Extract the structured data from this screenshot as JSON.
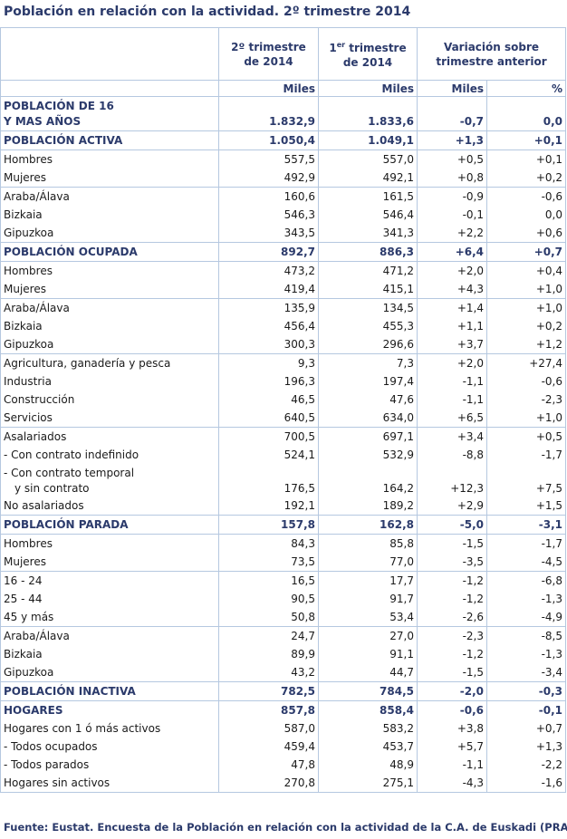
{
  "title": "Población en relación con la actividad. 2º trimestre 2014",
  "headers": {
    "col1_line1": "2º trimestre",
    "col1_line2": "de 2014",
    "col2_pre": "1",
    "col2_sup": "er",
    "col2_post": " trimestre",
    "col2_line2": "de 2014",
    "col3_line1": "Variación sobre",
    "col3_line2": "trimestre anterior",
    "unit_miles_1": "Miles",
    "unit_miles_2": "Miles",
    "unit_miles_3": "Miles",
    "unit_pct": "%"
  },
  "rows": [
    {
      "label": "POBLACIÓN DE 16",
      "label2": "Y MAS AÑOS",
      "v1": "1.832,9",
      "v2": "1.833,6",
      "v3": "-0,7",
      "v4": "0,0"
    },
    {
      "label": "POBLACIÓN ACTIVA",
      "v1": "1.050,4",
      "v2": "1.049,1",
      "v3": "+1,3",
      "v4": "+0,1"
    },
    {
      "label": "Hombres",
      "v1": "557,5",
      "v2": "557,0",
      "v3": "+0,5",
      "v4": "+0,1"
    },
    {
      "label": "Mujeres",
      "v1": "492,9",
      "v2": "492,1",
      "v3": "+0,8",
      "v4": "+0,2"
    },
    {
      "label": "Araba/Álava",
      "v1": "160,6",
      "v2": "161,5",
      "v3": "-0,9",
      "v4": "-0,6"
    },
    {
      "label": "Bizkaia",
      "v1": "546,3",
      "v2": "546,4",
      "v3": "-0,1",
      "v4": "0,0"
    },
    {
      "label": "Gipuzkoa",
      "v1": "343,5",
      "v2": "341,3",
      "v3": "+2,2",
      "v4": "+0,6"
    },
    {
      "label": "POBLACIÓN OCUPADA",
      "v1": "892,7",
      "v2": "886,3",
      "v3": "+6,4",
      "v4": "+0,7"
    },
    {
      "label": "Hombres",
      "v1": "473,2",
      "v2": "471,2",
      "v3": "+2,0",
      "v4": "+0,4"
    },
    {
      "label": "Mujeres",
      "v1": "419,4",
      "v2": "415,1",
      "v3": "+4,3",
      "v4": "+1,0"
    },
    {
      "label": "Araba/Álava",
      "v1": "135,9",
      "v2": "134,5",
      "v3": "+1,4",
      "v4": "+1,0"
    },
    {
      "label": "Bizkaia",
      "v1": "456,4",
      "v2": "455,3",
      "v3": "+1,1",
      "v4": "+0,2"
    },
    {
      "label": "Gipuzkoa",
      "v1": "300,3",
      "v2": "296,6",
      "v3": "+3,7",
      "v4": "+1,2"
    },
    {
      "label": "Agricultura, ganadería y pesca",
      "v1": "9,3",
      "v2": "7,3",
      "v3": "+2,0",
      "v4": "+27,4"
    },
    {
      "label": "Industria",
      "v1": "196,3",
      "v2": "197,4",
      "v3": "-1,1",
      "v4": "-0,6"
    },
    {
      "label": "Construcción",
      "v1": "46,5",
      "v2": "47,6",
      "v3": "-1,1",
      "v4": "-2,3"
    },
    {
      "label": "Servicios",
      "v1": "640,5",
      "v2": "634,0",
      "v3": "+6,5",
      "v4": "+1,0"
    },
    {
      "label": "Asalariados",
      "v1": "700,5",
      "v2": "697,1",
      "v3": "+3,4",
      "v4": "+0,5"
    },
    {
      "label": "- Con contrato indefinido",
      "v1": "524,1",
      "v2": "532,9",
      "v3": "-8,8",
      "v4": "-1,7"
    },
    {
      "label": "- Con contrato temporal",
      "label2": "y sin contrato",
      "v1": "176,5",
      "v2": "164,2",
      "v3": "+12,3",
      "v4": "+7,5"
    },
    {
      "label": "No asalariados",
      "v1": "192,1",
      "v2": "189,2",
      "v3": "+2,9",
      "v4": "+1,5"
    },
    {
      "label": "POBLACIÓN PARADA",
      "v1": "157,8",
      "v2": "162,8",
      "v3": "-5,0",
      "v4": "-3,1"
    },
    {
      "label": "Hombres",
      "v1": "84,3",
      "v2": "85,8",
      "v3": "-1,5",
      "v4": "-1,7"
    },
    {
      "label": "Mujeres",
      "v1": "73,5",
      "v2": "77,0",
      "v3": "-3,5",
      "v4": "-4,5"
    },
    {
      "label": "16 - 24",
      "v1": "16,5",
      "v2": "17,7",
      "v3": "-1,2",
      "v4": "-6,8"
    },
    {
      "label": "25 - 44",
      "v1": "90,5",
      "v2": "91,7",
      "v3": "-1,2",
      "v4": "-1,3"
    },
    {
      "label": "45 y más",
      "v1": "50,8",
      "v2": "53,4",
      "v3": "-2,6",
      "v4": "-4,9"
    },
    {
      "label": "Araba/Álava",
      "v1": "24,7",
      "v2": "27,0",
      "v3": "-2,3",
      "v4": "-8,5"
    },
    {
      "label": "Bizkaia",
      "v1": "89,9",
      "v2": "91,1",
      "v3": "-1,2",
      "v4": "-1,3"
    },
    {
      "label": "Gipuzkoa",
      "v1": "43,2",
      "v2": "44,7",
      "v3": "-1,5",
      "v4": "-3,4"
    },
    {
      "label": "POBLACIÓN INACTIVA",
      "v1": "782,5",
      "v2": "784,5",
      "v3": "-2,0",
      "v4": "-0,3"
    },
    {
      "label": "HOGARES",
      "v1": "857,8",
      "v2": "858,4",
      "v3": "-0,6",
      "v4": "-0,1"
    },
    {
      "label": "Hogares con 1 ó más activos",
      "v1": "587,0",
      "v2": "583,2",
      "v3": "+3,8",
      "v4": "+0,7"
    },
    {
      "label": "- Todos ocupados",
      "v1": "459,4",
      "v2": "453,7",
      "v3": "+5,7",
      "v4": "+1,3"
    },
    {
      "label": "- Todos parados",
      "v1": "47,8",
      "v2": "48,9",
      "v3": "-1,1",
      "v4": "-2,2"
    },
    {
      "label": "Hogares sin activos",
      "v1": "270,8",
      "v2": "275,1",
      "v3": "-4,3",
      "v4": "-1,6"
    }
  ],
  "footer": "Fuente: Eustat. Encuesta de la Población en relación con la actividad de la C.A. de Euskadi (PRA)"
}
